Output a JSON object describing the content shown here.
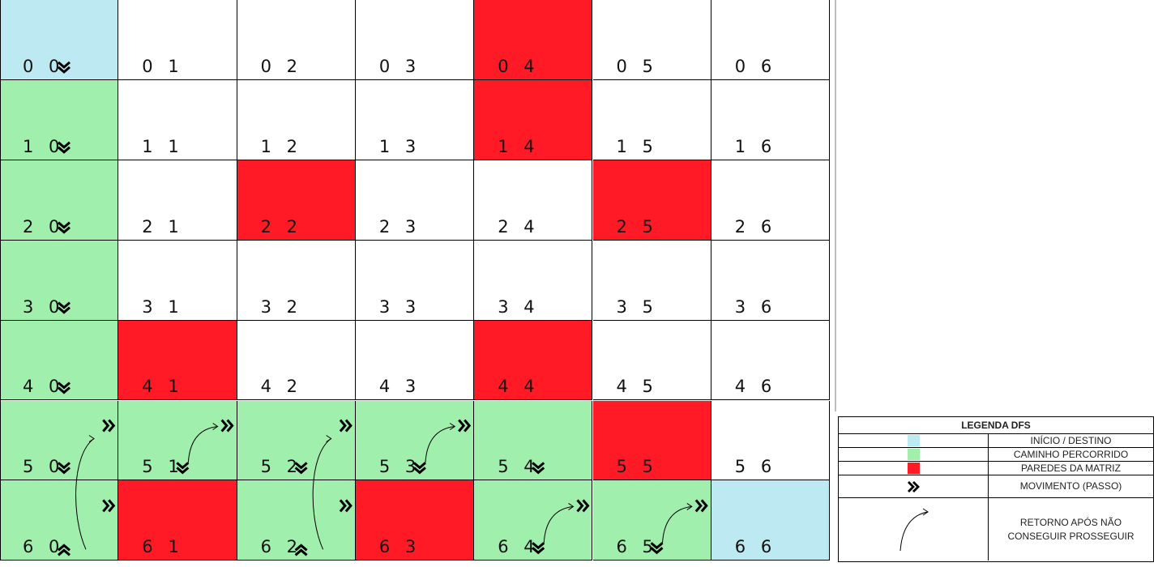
{
  "colors": {
    "start": "#bde9f2",
    "path": "#a1efad",
    "wall": "#ff1a26",
    "empty": "#ffffff"
  },
  "grid": {
    "rows": 7,
    "cols": 7,
    "cells": [
      [
        "start",
        "empty",
        "empty",
        "empty",
        "wall",
        "empty",
        "empty"
      ],
      [
        "path",
        "empty",
        "empty",
        "empty",
        "wall",
        "empty",
        "empty"
      ],
      [
        "path",
        "empty",
        "wall",
        "empty",
        "empty",
        "wall",
        "empty"
      ],
      [
        "path",
        "empty",
        "empty",
        "empty",
        "empty",
        "empty",
        "empty"
      ],
      [
        "path",
        "wall",
        "empty",
        "empty",
        "wall",
        "empty",
        "empty"
      ],
      [
        "path",
        "path",
        "path",
        "path",
        "path",
        "wall",
        "empty"
      ],
      [
        "path",
        "wall",
        "path",
        "wall",
        "path",
        "path",
        "start"
      ]
    ],
    "labels": [
      [
        "0 0",
        "0 1",
        "0 2",
        "0 3",
        "0 4",
        "0 5",
        "0 6"
      ],
      [
        "1 0",
        "1 1",
        "1 2",
        "1 3",
        "1 4",
        "1 5",
        "1 6"
      ],
      [
        "2 0",
        "2 1",
        "2 2",
        "2 3",
        "2 4",
        "2 5",
        "2 6"
      ],
      [
        "3 0",
        "3 1",
        "3 2",
        "3 3",
        "3 4",
        "3 5",
        "3 6"
      ],
      [
        "4 0",
        "4 1",
        "4 2",
        "4 3",
        "4 4",
        "4 5",
        "4 6"
      ],
      [
        "5 0",
        "5 1",
        "5 2",
        "5 3",
        "5 4",
        "5 5",
        "5 6"
      ],
      [
        "6 0",
        "6 1",
        "6 2",
        "6 3",
        "6 4",
        "6 5",
        "6 6"
      ]
    ],
    "moves": [
      {
        "cell": [
          0,
          0
        ],
        "dir": "down"
      },
      {
        "cell": [
          1,
          0
        ],
        "dir": "down"
      },
      {
        "cell": [
          2,
          0
        ],
        "dir": "down"
      },
      {
        "cell": [
          3,
          0
        ],
        "dir": "down"
      },
      {
        "cell": [
          4,
          0
        ],
        "dir": "down"
      },
      {
        "cell": [
          5,
          0
        ],
        "dir": "down"
      },
      {
        "cell": [
          5,
          0
        ],
        "dir": "right"
      },
      {
        "cell": [
          6,
          0
        ],
        "dir": "up"
      },
      {
        "cell": [
          6,
          0
        ],
        "dir": "right"
      },
      {
        "cell": [
          5,
          1
        ],
        "dir": "down"
      },
      {
        "cell": [
          5,
          1
        ],
        "dir": "right"
      },
      {
        "cell": [
          5,
          2
        ],
        "dir": "down"
      },
      {
        "cell": [
          5,
          2
        ],
        "dir": "right"
      },
      {
        "cell": [
          6,
          2
        ],
        "dir": "up"
      },
      {
        "cell": [
          6,
          2
        ],
        "dir": "right"
      },
      {
        "cell": [
          5,
          3
        ],
        "dir": "down"
      },
      {
        "cell": [
          5,
          3
        ],
        "dir": "right"
      },
      {
        "cell": [
          5,
          4
        ],
        "dir": "down"
      },
      {
        "cell": [
          6,
          4
        ],
        "dir": "down"
      },
      {
        "cell": [
          6,
          4
        ],
        "dir": "right"
      },
      {
        "cell": [
          6,
          5
        ],
        "dir": "down"
      },
      {
        "cell": [
          6,
          5
        ],
        "dir": "right"
      }
    ],
    "returns": [
      {
        "from": [
          6,
          0
        ],
        "to": [
          5,
          0
        ]
      },
      {
        "from": [
          5,
          1
        ],
        "to": [
          5,
          1
        ]
      },
      {
        "from": [
          6,
          2
        ],
        "to": [
          5,
          2
        ]
      },
      {
        "from": [
          5,
          3
        ],
        "to": [
          5,
          3
        ]
      },
      {
        "from": [
          6,
          4
        ],
        "to": [
          6,
          4
        ]
      },
      {
        "from": [
          6,
          5
        ],
        "to": [
          6,
          5
        ]
      }
    ]
  },
  "legend": {
    "title": "LEGENDA DFS",
    "items": [
      {
        "symbol": "start",
        "text": "INÍCIO / DESTINO"
      },
      {
        "symbol": "path",
        "text": "CAMINHO PERCORRIDO"
      },
      {
        "symbol": "wall",
        "text": "PAREDES DA MATRIZ"
      },
      {
        "symbol": "move-arrow-icon",
        "text": "MOVIMENTO (PASSO)"
      },
      {
        "symbol": "return-arc-icon",
        "text": "RETORNO APÓS NÃO CONSEGUIR PROSSEGUIR"
      }
    ]
  }
}
